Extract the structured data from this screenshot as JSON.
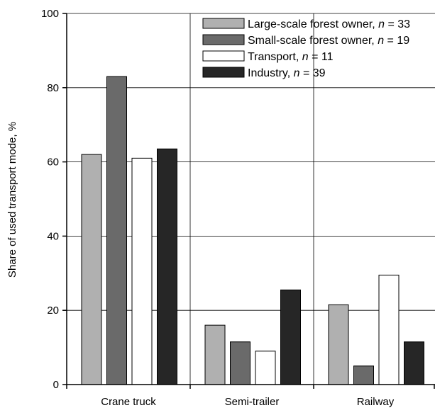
{
  "chart_data": {
    "type": "bar",
    "title": "",
    "xlabel": "",
    "ylabel": "Share of used transport mode, %",
    "ylim": [
      0,
      100
    ],
    "yticks": [
      0,
      20,
      40,
      60,
      80,
      100
    ],
    "grid": true,
    "legend_position": "top-right",
    "categories": [
      "Crane truck",
      "Semi-trailer",
      "Railway"
    ],
    "series": [
      {
        "name": "Large-scale forest owner",
        "n_prefix": ", ",
        "n_symbol": "n",
        "n_value": " = 33",
        "color": "#b0b0b0",
        "values": [
          62,
          16,
          21.5
        ]
      },
      {
        "name": "Small-scale forest owner",
        "n_prefix": ", ",
        "n_symbol": "n",
        "n_value": " = 19",
        "color": "#6a6a6a",
        "values": [
          83,
          11.5,
          5
        ]
      },
      {
        "name": "Transport",
        "n_prefix": ", ",
        "n_symbol": "n",
        "n_value": " = 11",
        "color": "#ffffff",
        "values": [
          61,
          9,
          29.5
        ]
      },
      {
        "name": "Industry",
        "n_prefix": ", ",
        "n_symbol": "n",
        "n_value": " = 39",
        "color": "#262626",
        "values": [
          63.5,
          25.5,
          11.5
        ]
      }
    ]
  }
}
